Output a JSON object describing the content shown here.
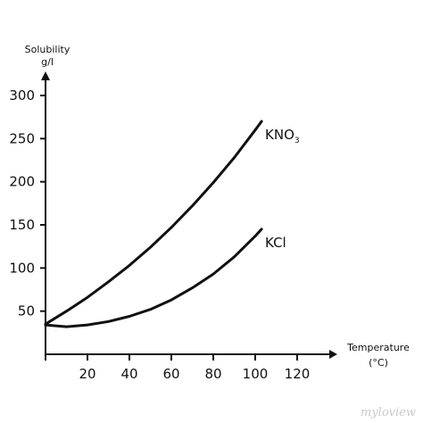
{
  "chart_data": {
    "type": "line",
    "xlabel": "Temperature",
    "xlabel_unit": "(°C)",
    "ylabel": "Solubility",
    "ylabel_unit": "g/l",
    "xlim": [
      0,
      140
    ],
    "ylim": [
      0,
      330
    ],
    "x_ticks": [
      20,
      40,
      60,
      80,
      100,
      120
    ],
    "y_ticks": [
      50,
      100,
      150,
      200,
      250,
      300
    ],
    "grid": false,
    "series": [
      {
        "name": "KNO3",
        "label_main": "KNO",
        "label_sub": "3",
        "color": "#111111",
        "x": [
          0,
          10,
          20,
          30,
          40,
          50,
          60,
          70,
          80,
          90,
          100,
          103
        ],
        "y": [
          35,
          50,
          66,
          84,
          103,
          124,
          147,
          172,
          199,
          228,
          260,
          270
        ]
      },
      {
        "name": "KCl",
        "label_main": "KCl",
        "label_sub": "",
        "color": "#111111",
        "x": [
          0,
          10,
          20,
          30,
          40,
          50,
          60,
          70,
          80,
          90,
          100,
          103
        ],
        "y": [
          34,
          32,
          34,
          38,
          44,
          52,
          63,
          77,
          93,
          113,
          137,
          145
        ]
      }
    ]
  },
  "watermark": "myloview"
}
